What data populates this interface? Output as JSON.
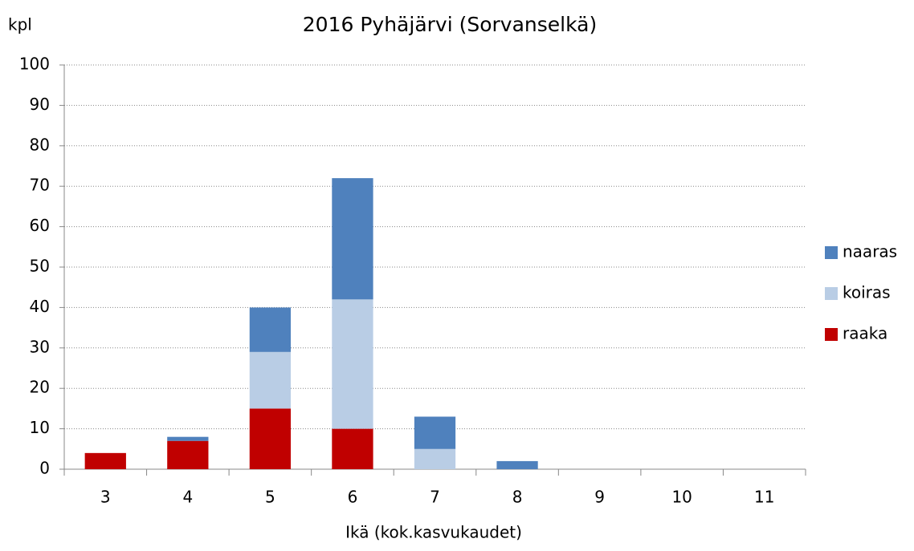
{
  "chart_data": {
    "type": "stacked_bar",
    "title": "2016 Pyhäjärvi (Sorvanselkä)",
    "y_label": "kpl",
    "x_label": "Ikä (kok.kasvukaudet)",
    "categories": [
      "3",
      "4",
      "5",
      "6",
      "7",
      "8",
      "9",
      "10",
      "11"
    ],
    "series": [
      {
        "name": "raaka",
        "color": "#c00000",
        "values": [
          4,
          7,
          15,
          10,
          0,
          0,
          0,
          0,
          0
        ]
      },
      {
        "name": "koiras",
        "color": "#b9cde5",
        "values": [
          0,
          0,
          14,
          32,
          5,
          0,
          0,
          0,
          0
        ]
      },
      {
        "name": "naaras",
        "color": "#4f81bd",
        "values": [
          0,
          1,
          11,
          30,
          8,
          2,
          0,
          0,
          0
        ]
      }
    ],
    "ylim": [
      0,
      100
    ],
    "yticks": [
      0,
      10,
      20,
      30,
      40,
      50,
      60,
      70,
      80,
      90,
      100
    ],
    "grid": true,
    "legend": "right"
  }
}
